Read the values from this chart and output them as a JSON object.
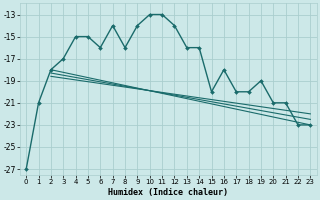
{
  "xlabel": "Humidex (Indice chaleur)",
  "bg_color": "#cce8e8",
  "grid_color": "#aacece",
  "line_color": "#1a6b6b",
  "xlim": [
    -0.5,
    23.5
  ],
  "ylim": [
    -27.5,
    -12.0
  ],
  "yticks": [
    -27,
    -25,
    -23,
    -21,
    -19,
    -17,
    -15,
    -13
  ],
  "xticks": [
    0,
    1,
    2,
    3,
    4,
    5,
    6,
    7,
    8,
    9,
    10,
    11,
    12,
    13,
    14,
    15,
    16,
    17,
    18,
    19,
    20,
    21,
    22,
    23
  ],
  "main_line": {
    "x": [
      0,
      1,
      2,
      3,
      4,
      5,
      6,
      7,
      8,
      9,
      10,
      11,
      12,
      13,
      14,
      15,
      16,
      17,
      18,
      19,
      20,
      21,
      22,
      23
    ],
    "y": [
      -27,
      -21,
      -18,
      -17,
      -15,
      -15,
      -16,
      -14,
      -16,
      -14,
      -13,
      -13,
      -14,
      -16,
      -16,
      -20,
      -18,
      -20,
      -20,
      -19,
      -21,
      -21,
      -23,
      -23
    ]
  },
  "flat_lines": [
    {
      "x": [
        2,
        23
      ],
      "y": [
        -18,
        -23
      ]
    },
    {
      "x": [
        2,
        23
      ],
      "y": [
        -18.3,
        -22.5
      ]
    },
    {
      "x": [
        2,
        23
      ],
      "y": [
        -18.6,
        -22.0
      ]
    }
  ]
}
